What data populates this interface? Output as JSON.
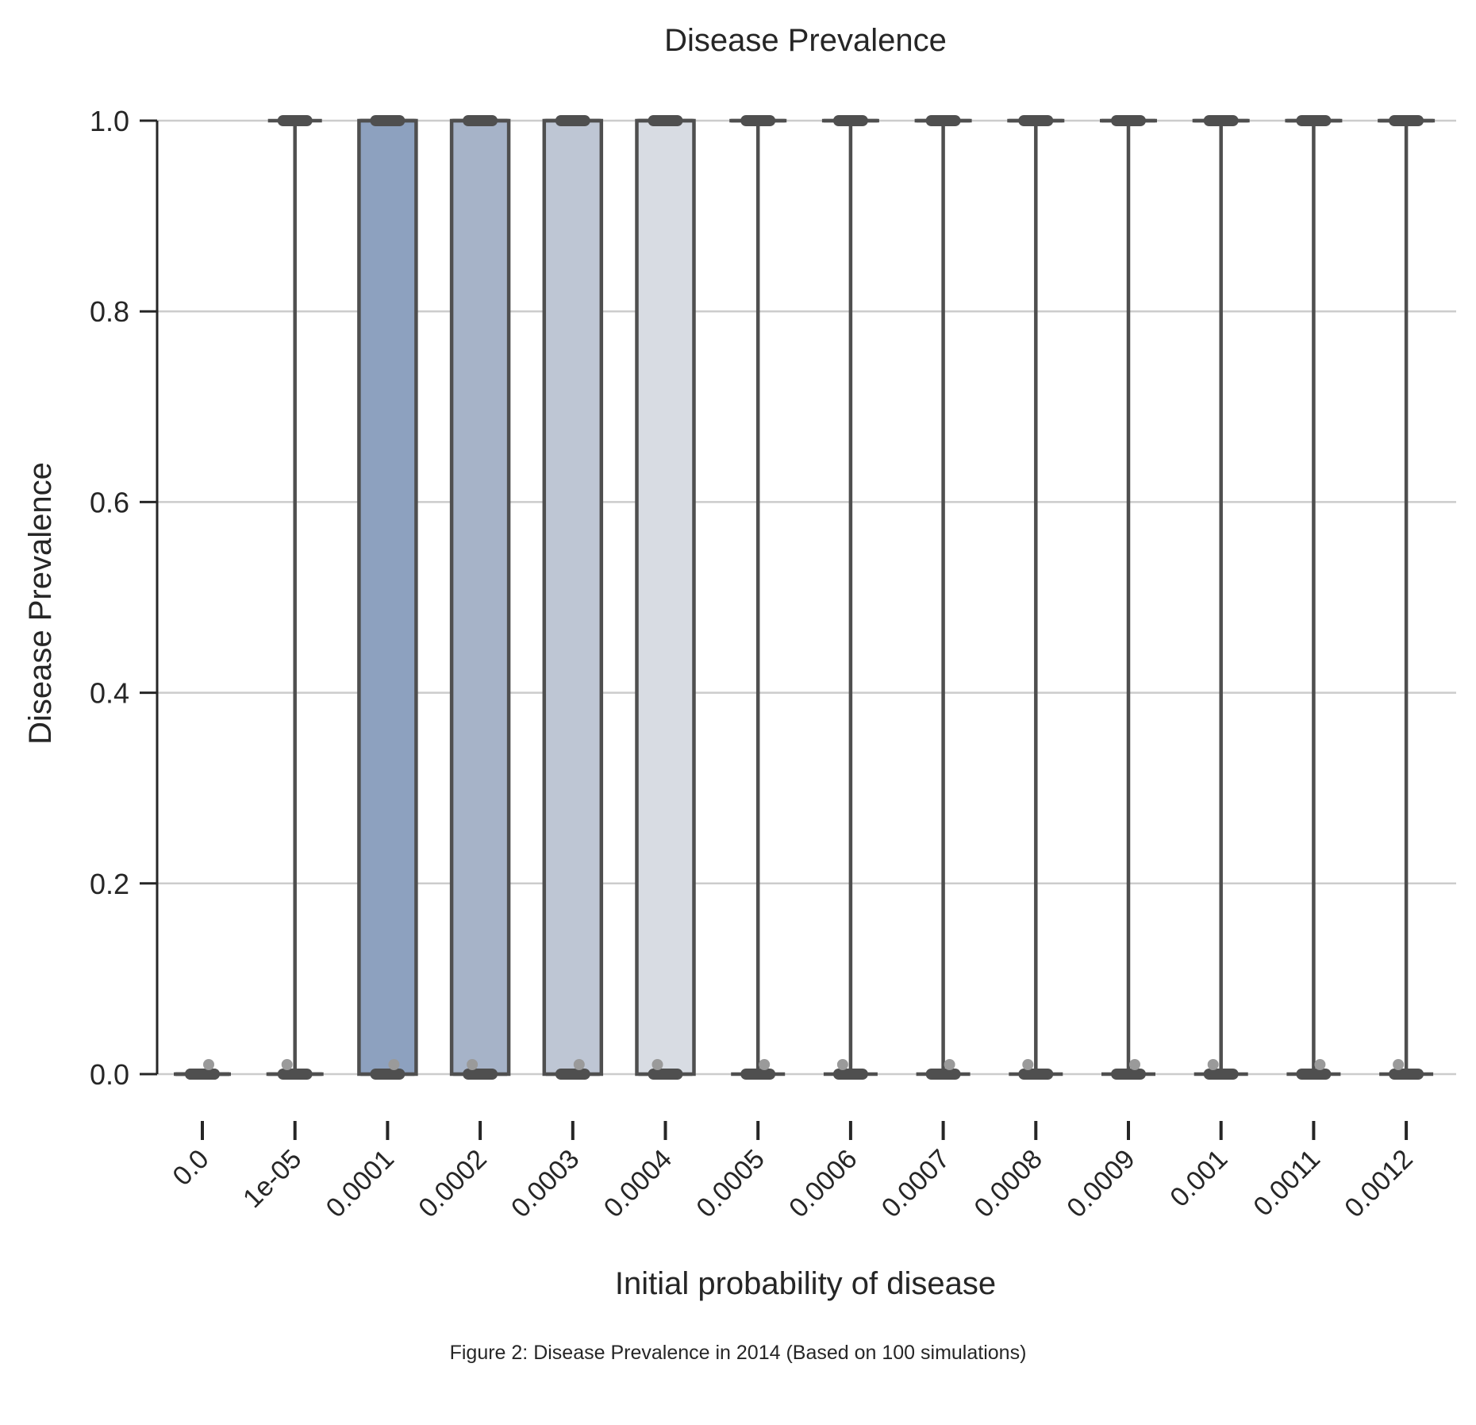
{
  "chart_data": {
    "type": "box",
    "title": "Disease Prevalence",
    "xlabel": "Initial probability of disease",
    "ylabel": "Disease Prevalence",
    "ylim": [
      0.0,
      1.0
    ],
    "yticks": [
      "0.0",
      "0.2",
      "0.4",
      "0.6",
      "0.8",
      "1.0"
    ],
    "categories": [
      "0.0",
      "1e-05",
      "0.0001",
      "0.0002",
      "0.0003",
      "0.0004",
      "0.0005",
      "0.0006",
      "0.0007",
      "0.0008",
      "0.0009",
      "0.001",
      "0.0011",
      "0.0012"
    ],
    "boxes": [
      {
        "q1": 0.0,
        "median": 0.0,
        "q3": 0.0,
        "whisker_low": 0.0,
        "whisker_high": 0.0
      },
      {
        "q1": 0.0,
        "median": 0.0,
        "q3": 0.0,
        "whisker_low": 0.0,
        "whisker_high": 1.0
      },
      {
        "q1": 0.0,
        "median": 1.0,
        "q3": 1.0,
        "whisker_low": 0.0,
        "whisker_high": 1.0
      },
      {
        "q1": 0.0,
        "median": 1.0,
        "q3": 1.0,
        "whisker_low": 0.0,
        "whisker_high": 1.0
      },
      {
        "q1": 0.0,
        "median": 1.0,
        "q3": 1.0,
        "whisker_low": 0.0,
        "whisker_high": 1.0
      },
      {
        "q1": 0.0,
        "median": 1.0,
        "q3": 1.0,
        "whisker_low": 0.0,
        "whisker_high": 1.0
      },
      {
        "q1": 1.0,
        "median": 1.0,
        "q3": 1.0,
        "whisker_low": 0.0,
        "whisker_high": 1.0
      },
      {
        "q1": 1.0,
        "median": 1.0,
        "q3": 1.0,
        "whisker_low": 0.0,
        "whisker_high": 1.0
      },
      {
        "q1": 1.0,
        "median": 1.0,
        "q3": 1.0,
        "whisker_low": 0.0,
        "whisker_high": 1.0
      },
      {
        "q1": 1.0,
        "median": 1.0,
        "q3": 1.0,
        "whisker_low": 0.0,
        "whisker_high": 1.0
      },
      {
        "q1": 1.0,
        "median": 1.0,
        "q3": 1.0,
        "whisker_low": 0.0,
        "whisker_high": 1.0
      },
      {
        "q1": 1.0,
        "median": 1.0,
        "q3": 1.0,
        "whisker_low": 0.0,
        "whisker_high": 1.0
      },
      {
        "q1": 1.0,
        "median": 1.0,
        "q3": 1.0,
        "whisker_low": 0.0,
        "whisker_high": 1.0
      },
      {
        "q1": 1.0,
        "median": 1.0,
        "q3": 1.0,
        "whisker_low": 0.0,
        "whisker_high": 1.0
      }
    ],
    "box_colors": [
      "#8da1bf",
      "#8da1bf",
      "#8da1bf",
      "#a6b3c8",
      "#bec6d4",
      "#d8dce3",
      "#d8dce3",
      "#d8dce3",
      "#d8dce3",
      "#d8dce3",
      "#d8dce3",
      "#d8dce3",
      "#d8dce3",
      "#d8dce3"
    ],
    "line_color": "#4f4f4f",
    "grid": true
  },
  "caption": "Figure 2: Disease Prevalence in 2014 (Based on 100 simulations)"
}
